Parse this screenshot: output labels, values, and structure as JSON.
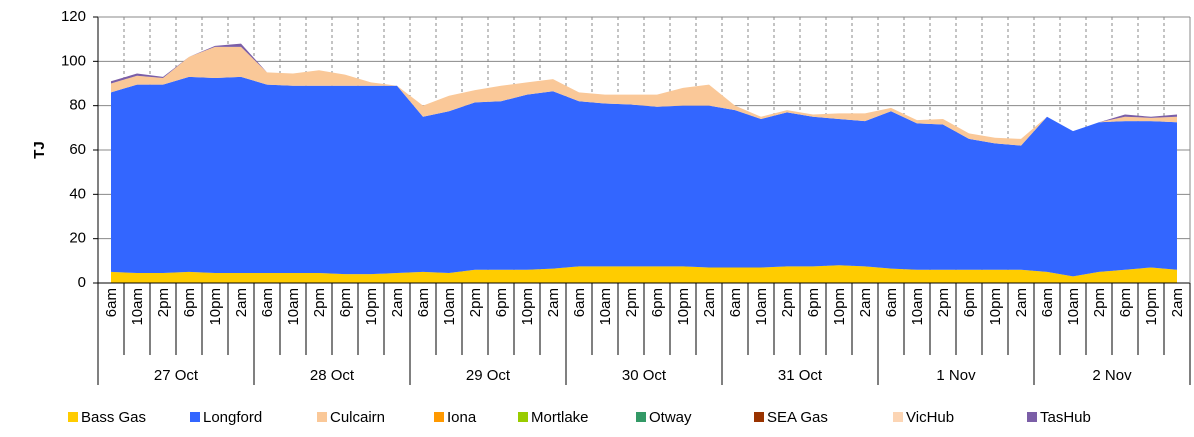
{
  "chart_data": {
    "type": "stacked-area",
    "y_label": "TJ",
    "categories": [
      "6am",
      "10am",
      "2pm",
      "6pm",
      "10pm",
      "2am",
      "6am",
      "10am",
      "2pm",
      "6pm",
      "10pm",
      "2am",
      "6am",
      "10am",
      "2pm",
      "6pm",
      "10pm",
      "2am",
      "6am",
      "10am",
      "2pm",
      "6pm",
      "10pm",
      "2am",
      "6am",
      "10am",
      "2pm",
      "6pm",
      "10pm",
      "2am",
      "6am",
      "10am",
      "2pm",
      "6pm",
      "10pm",
      "2am",
      "6am",
      "10am",
      "2pm",
      "6pm",
      "10pm",
      "2am"
    ],
    "dates": [
      "27 Oct",
      "28 Oct",
      "29 Oct",
      "30 Oct",
      "31 Oct",
      "1 Nov",
      "2 Nov"
    ],
    "ylim": [
      0,
      120
    ],
    "yticks": [
      0,
      20,
      40,
      60,
      80,
      100,
      120
    ],
    "grid": true,
    "series": [
      {
        "name": "Bass Gas",
        "color": "#ffcc00",
        "values": [
          5,
          4.5,
          4.5,
          5,
          4.5,
          4.5,
          4.5,
          4.5,
          4.5,
          4,
          4,
          4.5,
          5,
          4.5,
          6,
          6,
          6,
          6.5,
          7.5,
          7.5,
          7.5,
          7.5,
          7.5,
          7,
          7,
          7,
          7.5,
          7.5,
          8,
          7.5,
          6.5,
          6,
          6,
          6,
          6,
          6,
          5,
          3,
          5,
          6,
          7,
          6
        ]
      },
      {
        "name": "Longford",
        "color": "#3366ff",
        "values": [
          81,
          85,
          85,
          88,
          88,
          88.5,
          85,
          84.5,
          84.5,
          85,
          85,
          84.5,
          70,
          73,
          75.5,
          76,
          79,
          80,
          74.5,
          73.5,
          73,
          72,
          72.5,
          73,
          71,
          67,
          69.5,
          67.5,
          66,
          65.5,
          71,
          66,
          65.5,
          59,
          57,
          56,
          70,
          65.5,
          67.5,
          67,
          66,
          66.5
        ]
      },
      {
        "name": "Culcairn",
        "color": "#fac898",
        "values": [
          4,
          4,
          3,
          9,
          14,
          13.5,
          5.5,
          5.5,
          7,
          5,
          1.5,
          0,
          5,
          7,
          5.5,
          7,
          5.5,
          5.5,
          4,
          4,
          4.5,
          5.5,
          8,
          9.5,
          2,
          1,
          1,
          1,
          2.5,
          3.5,
          1.5,
          1.5,
          2.5,
          2.5,
          2.5,
          3,
          0,
          0,
          0,
          2,
          1.5,
          2.5
        ]
      },
      {
        "name": "Iona",
        "color": "#ff9900",
        "values": [
          0,
          0,
          0,
          0,
          0,
          0,
          0,
          0,
          0,
          0,
          0,
          0,
          0,
          0,
          0,
          0,
          0,
          0,
          0,
          0,
          0,
          0,
          0,
          0,
          0,
          0,
          0,
          0,
          0,
          0,
          0,
          0,
          0,
          0,
          0,
          0,
          0,
          0,
          0,
          0,
          0,
          0
        ]
      },
      {
        "name": "Mortlake",
        "color": "#99cc00",
        "values": [
          0,
          0,
          0,
          0,
          0,
          0,
          0,
          0,
          0,
          0,
          0,
          0,
          0,
          0,
          0,
          0,
          0,
          0,
          0,
          0,
          0,
          0,
          0,
          0,
          0,
          0,
          0,
          0,
          0,
          0,
          0,
          0,
          0,
          0,
          0,
          0,
          0,
          0,
          0,
          0,
          0,
          0
        ]
      },
      {
        "name": "Otway",
        "color": "#339966",
        "values": [
          0,
          0,
          0,
          0,
          0,
          0,
          0,
          0,
          0,
          0,
          0,
          0,
          0,
          0,
          0,
          0,
          0,
          0,
          0,
          0,
          0,
          0,
          0,
          0,
          0,
          0,
          0,
          0,
          0,
          0,
          0,
          0,
          0,
          0,
          0,
          0,
          0,
          0,
          0,
          0,
          0,
          0
        ]
      },
      {
        "name": "SEA Gas",
        "color": "#993300",
        "values": [
          0,
          0,
          0,
          0,
          0,
          0,
          0,
          0,
          0,
          0,
          0,
          0,
          0,
          0,
          0,
          0,
          0,
          0,
          0,
          0,
          0,
          0,
          0,
          0,
          0,
          0,
          0,
          0,
          0,
          0,
          0,
          0,
          0,
          0,
          0,
          0,
          0,
          0,
          0,
          0,
          0,
          0
        ]
      },
      {
        "name": "VicHub",
        "color": "#fcd5b4",
        "values": [
          0,
          0,
          0,
          0,
          0,
          0,
          0,
          0,
          0,
          0,
          0,
          0,
          0,
          0,
          0,
          0,
          0,
          0,
          0,
          0,
          0,
          0,
          0,
          0,
          0,
          0,
          0,
          0,
          0,
          0,
          0,
          0,
          0,
          0,
          0,
          0,
          0,
          0,
          0,
          0,
          0,
          0
        ]
      },
      {
        "name": "TasHub",
        "color": "#7b5ea7",
        "values": [
          1,
          1,
          0.5,
          0,
          0.5,
          1.5,
          0,
          0,
          0,
          0,
          0,
          0,
          0,
          0,
          0,
          0,
          0,
          0,
          0,
          0,
          0,
          0,
          0,
          0,
          0,
          0,
          0,
          0,
          0,
          0,
          0,
          0,
          0,
          0,
          0,
          0,
          0,
          0,
          0,
          1,
          0.5,
          1
        ]
      }
    ]
  }
}
